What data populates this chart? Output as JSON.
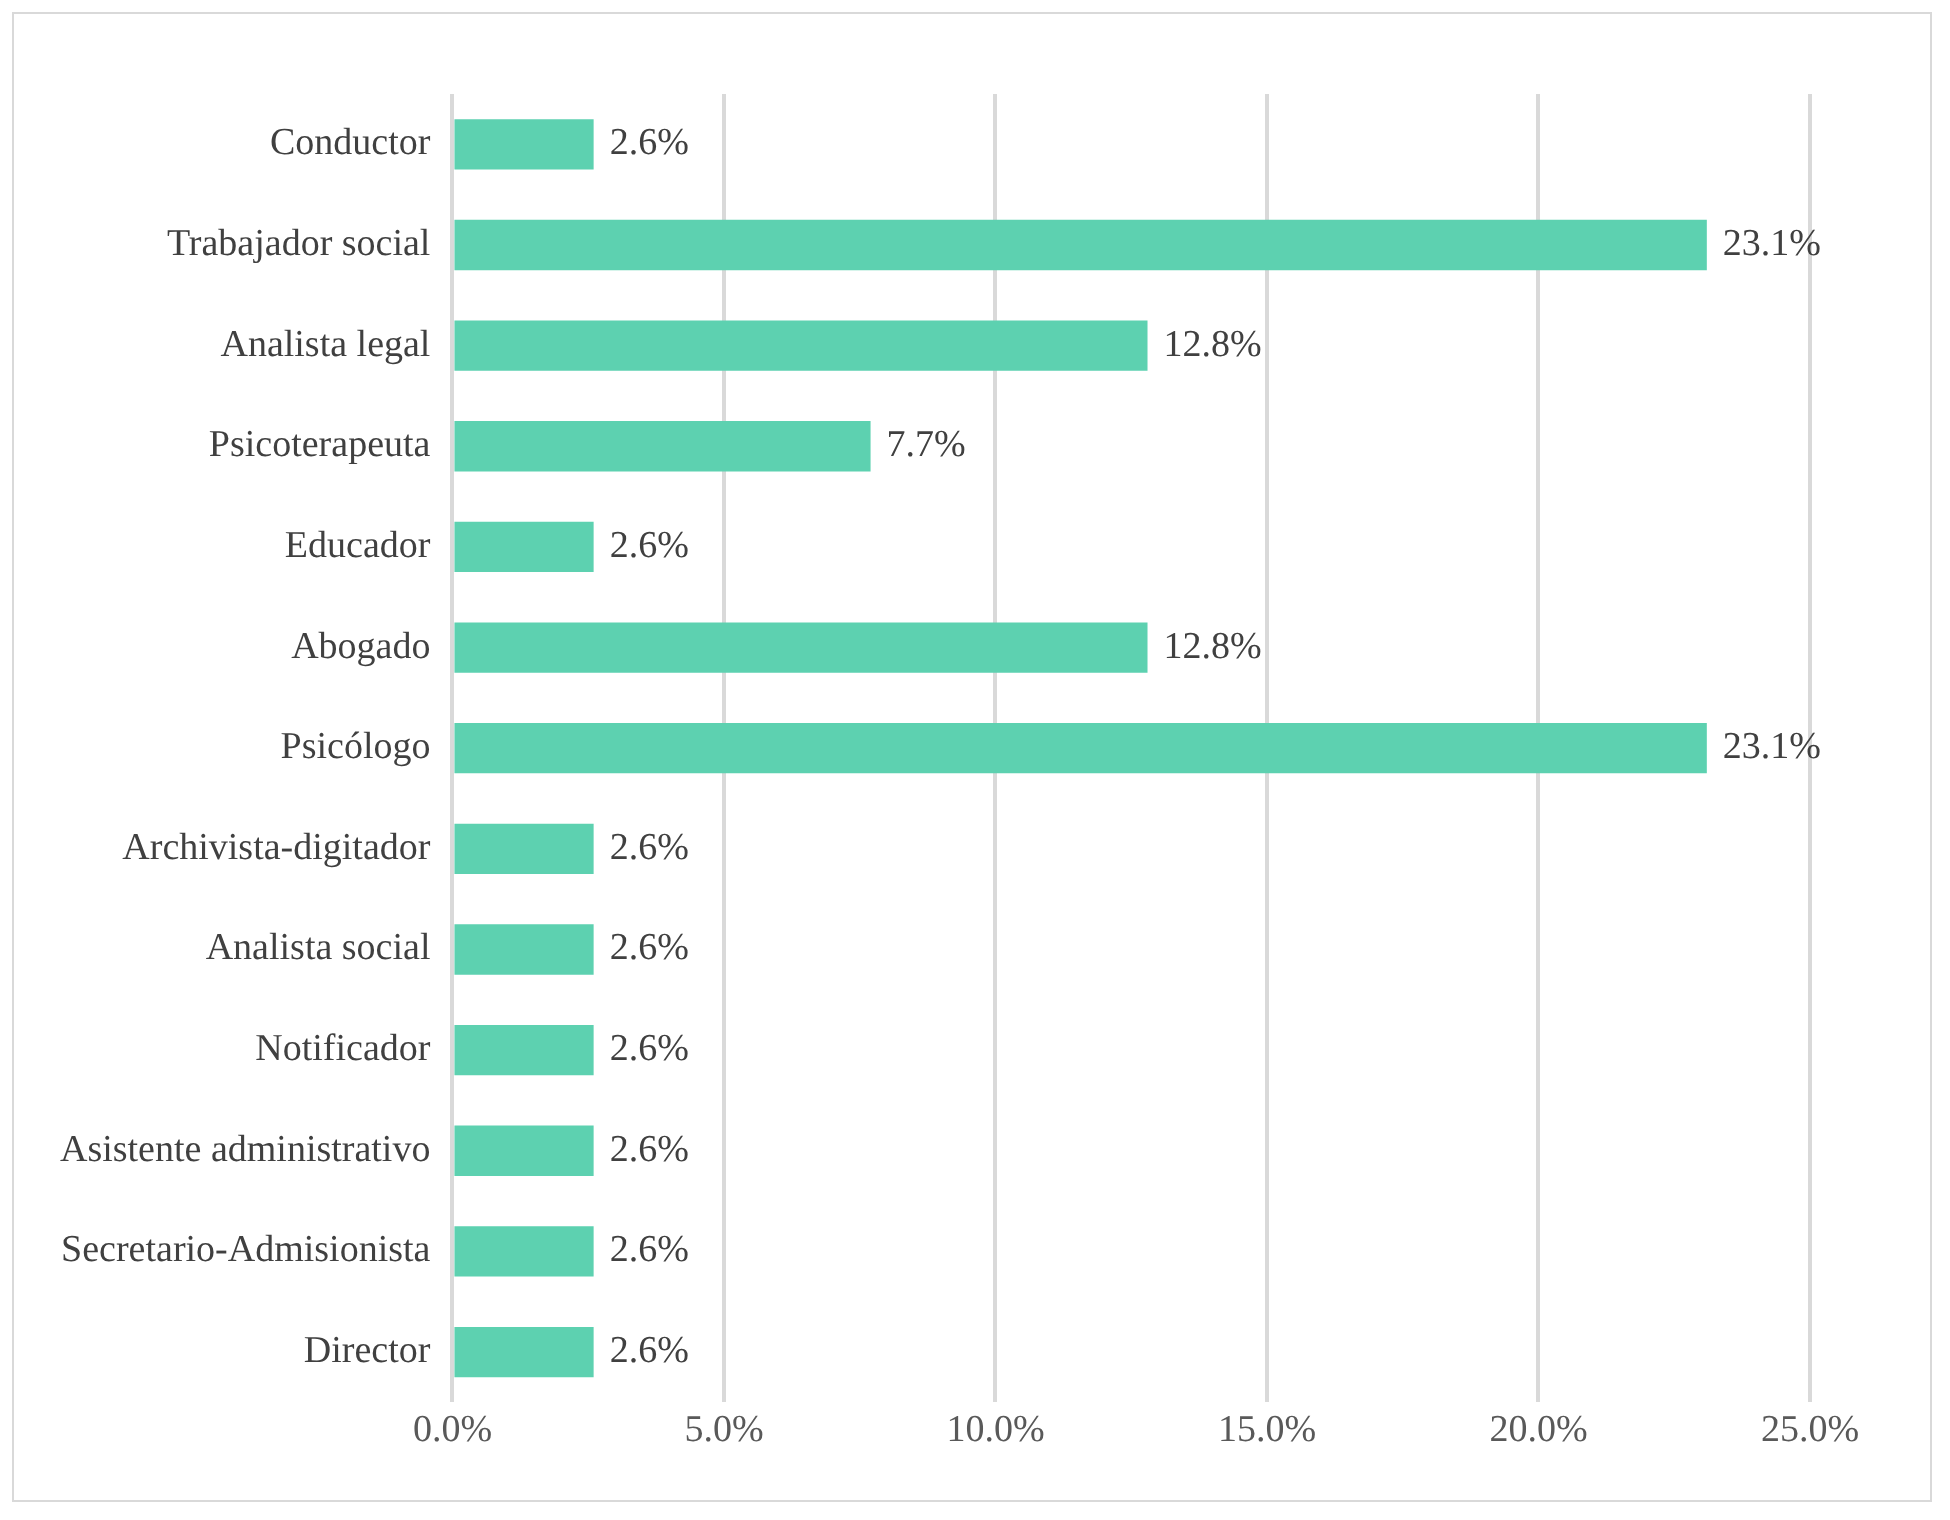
{
  "chart_data": {
    "type": "bar",
    "orientation": "horizontal",
    "categories": [
      "Conductor",
      "Trabajador social",
      "Analista legal",
      "Psicoterapeuta",
      "Educador",
      "Abogado",
      "Psicólogo",
      "Archivista-digitador",
      "Analista social",
      "Notificador",
      "Asistente administrativo",
      "Secretario-Admisionista",
      "Director"
    ],
    "values": [
      2.6,
      23.1,
      12.8,
      7.7,
      2.6,
      12.8,
      23.1,
      2.6,
      2.6,
      2.6,
      2.6,
      2.6,
      2.6
    ],
    "value_labels": [
      "2.6%",
      "23.1%",
      "12.8%",
      "7.7%",
      "2.6%",
      "12.8%",
      "23.1%",
      "2.6%",
      "2.6%",
      "2.6%",
      "2.6%",
      "2.6%",
      "2.6%"
    ],
    "color": "#5dd1b0",
    "xlim": [
      0,
      25
    ],
    "xticks": [
      {
        "value": 0,
        "label": "0.0%"
      },
      {
        "value": 5,
        "label": "5.0%"
      },
      {
        "value": 10,
        "label": "10.0%"
      },
      {
        "value": 15,
        "label": "15.0%"
      },
      {
        "value": 20,
        "label": "20.0%"
      },
      {
        "value": 25,
        "label": "25.0%"
      }
    ],
    "grid": "x",
    "legend": false
  }
}
